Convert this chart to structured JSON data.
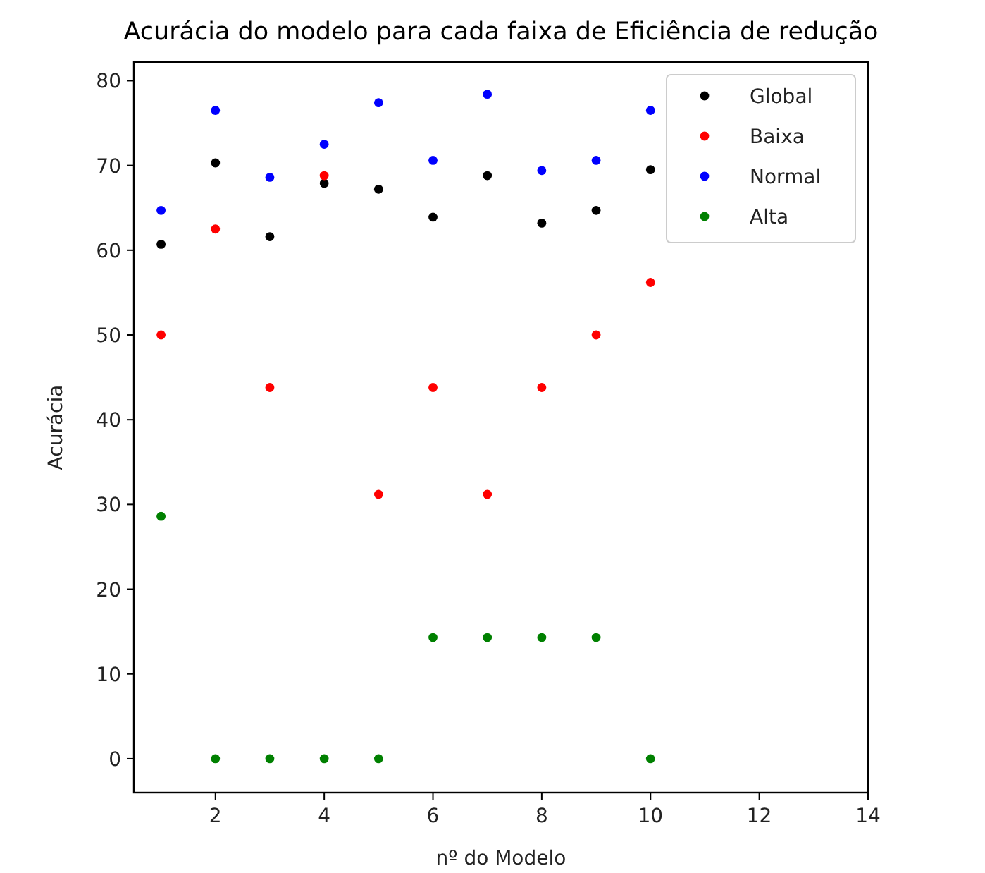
{
  "chart_data": {
    "type": "scatter",
    "title": "Acurácia do modelo para cada faixa de Eficiência de redução",
    "xlabel": "nº do Modelo",
    "ylabel": "Acurácia",
    "x": [
      1,
      2,
      3,
      4,
      5,
      6,
      7,
      8,
      9,
      10
    ],
    "series": [
      {
        "name": "Global",
        "color": "#000000",
        "values": [
          60.7,
          70.3,
          61.6,
          67.9,
          67.2,
          63.9,
          68.8,
          63.2,
          64.7,
          69.5
        ]
      },
      {
        "name": "Baixa",
        "color": "#ff0000",
        "values": [
          50,
          62.5,
          43.8,
          68.8,
          31.2,
          43.8,
          31.2,
          43.8,
          50,
          56.2
        ]
      },
      {
        "name": "Normal",
        "color": "#0000ff",
        "values": [
          64.7,
          76.5,
          68.6,
          72.5,
          77.4,
          70.6,
          78.4,
          69.4,
          70.6,
          76.5
        ]
      },
      {
        "name": "Alta",
        "color": "#008000",
        "values": [
          28.6,
          0,
          0,
          0,
          0,
          14.3,
          14.3,
          14.3,
          14.3,
          0
        ]
      }
    ],
    "xlim": [
      0.5,
      14
    ],
    "ylim": [
      -4,
      82.2
    ],
    "xticks": [
      2,
      4,
      6,
      8,
      10,
      12,
      14
    ],
    "yticks": [
      0,
      10,
      20,
      30,
      40,
      50,
      60,
      70,
      80
    ],
    "grid": false,
    "legend": "top right",
    "marker": "circle"
  }
}
